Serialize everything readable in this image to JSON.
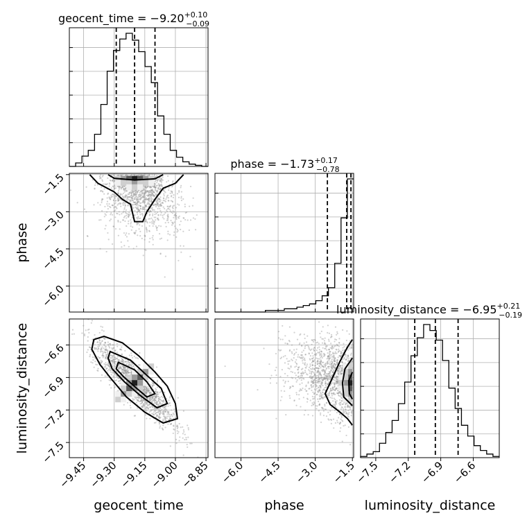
{
  "chart_data": {
    "type": "corner",
    "parameters": [
      "geocent_time",
      "phase",
      "luminosity_distance"
    ],
    "grid": true,
    "titles": [
      {
        "param": "geocent_time",
        "name": "geocent_time",
        "median": "−9.20",
        "plus": "+0.10",
        "minus": "−0.09"
      },
      {
        "param": "phase",
        "name": "phase",
        "median": "−1.73",
        "plus": "+0.17",
        "minus": "−0.78"
      },
      {
        "param": "luminosity_distance",
        "name": "luminosity_distance",
        "median": "−6.95",
        "plus": "+0.21",
        "minus": "−0.19"
      }
    ],
    "axes": {
      "geocent_time": {
        "range": [
          -9.52,
          -8.84
        ],
        "ticks": [
          -9.45,
          -9.3,
          -9.15,
          -9.0,
          -8.85
        ],
        "tick_labels": [
          "−9.45",
          "−9.30",
          "−9.15",
          "−9.00",
          "−8.85"
        ]
      },
      "phase": {
        "range": [
          -7.05,
          -1.45
        ],
        "ticks": [
          -6.0,
          -4.5,
          -3.0,
          -1.5
        ],
        "tick_labels": [
          "−6.0",
          "−4.5",
          "−3.0",
          "−1.5"
        ]
      },
      "luminosity_distance": {
        "range": [
          -7.64,
          -6.36
        ],
        "ticks": [
          -7.5,
          -7.2,
          -6.9,
          -6.6
        ],
        "tick_labels": [
          "−7.5",
          "−7.2",
          "−6.9",
          "−6.6"
        ]
      }
    },
    "quantiles": {
      "geocent_time": [
        -9.29,
        -9.2,
        -9.1
      ],
      "phase": [
        -2.51,
        -1.73,
        -1.56
      ],
      "luminosity_distance": [
        -7.14,
        -6.95,
        -6.74
      ]
    },
    "histograms": {
      "geocent_time": {
        "edges_range": [
          -9.52,
          -8.84
        ],
        "counts": [
          0,
          3,
          9,
          14,
          28,
          54,
          83,
          101,
          111,
          116,
          110,
          100,
          87,
          73,
          44,
          28,
          14,
          8,
          4,
          2,
          1,
          0
        ]
      },
      "phase": {
        "edges_range": [
          -7.05,
          -1.45
        ],
        "counts": [
          0,
          0,
          0,
          0,
          0,
          0,
          0,
          0,
          1,
          1,
          1,
          2,
          2,
          3,
          4,
          5,
          7,
          10,
          15,
          30,
          58,
          82
        ]
      },
      "luminosity_distance": {
        "edges_range": [
          -7.64,
          -6.36
        ],
        "counts": [
          1,
          3,
          5,
          12,
          21,
          31,
          45,
          63,
          85,
          100,
          111,
          106,
          98,
          81,
          58,
          41,
          27,
          18,
          10,
          6,
          3,
          1
        ]
      }
    },
    "pairs": [
      {
        "x": "geocent_time",
        "y": "phase",
        "x_center": -9.2,
        "y_center": -1.73,
        "x_sd": 0.08,
        "y_sd": 0.9,
        "contours": [
          [
            [
              -9.42,
              -1.5
            ],
            [
              -9.38,
              -1.85
            ],
            [
              -9.3,
              -2.2
            ],
            [
              -9.26,
              -2.5
            ],
            [
              -9.22,
              -2.7
            ],
            [
              -9.2,
              -3.4
            ],
            [
              -9.16,
              -3.4
            ],
            [
              -9.14,
              -3.0
            ],
            [
              -9.1,
              -2.5
            ],
            [
              -9.06,
              -2.05
            ],
            [
              -9.0,
              -1.85
            ],
            [
              -8.96,
              -1.5
            ]
          ],
          [
            [
              -9.33,
              -1.5
            ],
            [
              -9.3,
              -1.65
            ],
            [
              -9.2,
              -1.72
            ],
            [
              -9.1,
              -1.67
            ],
            [
              -9.06,
              -1.5
            ]
          ]
        ]
      },
      {
        "x": "geocent_time",
        "y": "luminosity_distance",
        "x_center": -9.2,
        "y_center": -6.95,
        "x_sd": 0.1,
        "y_sd": 0.2,
        "contours": [
          [
            [
              -9.4,
              -6.55
            ],
            [
              -9.35,
              -6.52
            ],
            [
              -9.26,
              -6.58
            ],
            [
              -9.18,
              -6.7
            ],
            [
              -9.1,
              -6.85
            ],
            [
              -9.04,
              -6.98
            ],
            [
              -9.0,
              -7.14
            ],
            [
              -8.99,
              -7.28
            ],
            [
              -9.06,
              -7.32
            ],
            [
              -9.15,
              -7.22
            ],
            [
              -9.24,
              -7.08
            ],
            [
              -9.32,
              -6.9
            ],
            [
              -9.37,
              -6.78
            ],
            [
              -9.41,
              -6.64
            ]
          ],
          [
            [
              -9.32,
              -6.66
            ],
            [
              -9.22,
              -6.74
            ],
            [
              -9.14,
              -6.88
            ],
            [
              -9.07,
              -7.0
            ],
            [
              -9.04,
              -7.14
            ],
            [
              -9.09,
              -7.18
            ],
            [
              -9.17,
              -7.07
            ],
            [
              -9.25,
              -6.94
            ],
            [
              -9.31,
              -6.82
            ],
            [
              -9.33,
              -6.72
            ]
          ],
          [
            [
              -9.28,
              -6.76
            ],
            [
              -9.2,
              -6.83
            ],
            [
              -9.14,
              -6.94
            ],
            [
              -9.1,
              -7.05
            ],
            [
              -9.14,
              -7.08
            ],
            [
              -9.19,
              -7.0
            ],
            [
              -9.25,
              -6.9
            ],
            [
              -9.29,
              -6.82
            ]
          ]
        ]
      },
      {
        "x": "phase",
        "y": "luminosity_distance",
        "x_center": -1.75,
        "y_center": -6.95,
        "x_sd": 0.9,
        "y_sd": 0.2,
        "contours": [
          [
            [
              -1.5,
              -6.55
            ],
            [
              -1.7,
              -6.62
            ],
            [
              -2.0,
              -6.75
            ],
            [
              -2.3,
              -6.9
            ],
            [
              -2.6,
              -7.05
            ],
            [
              -2.4,
              -7.15
            ],
            [
              -2.0,
              -7.22
            ],
            [
              -1.7,
              -7.28
            ],
            [
              -1.5,
              -7.34
            ]
          ],
          [
            [
              -1.5,
              -6.72
            ],
            [
              -1.8,
              -6.82
            ],
            [
              -1.9,
              -6.95
            ],
            [
              -1.85,
              -7.08
            ],
            [
              -1.5,
              -7.16
            ]
          ],
          [
            [
              -1.5,
              -6.85
            ],
            [
              -1.65,
              -6.93
            ],
            [
              -1.62,
              -7.05
            ],
            [
              -1.5,
              -7.1
            ]
          ]
        ]
      }
    ]
  }
}
